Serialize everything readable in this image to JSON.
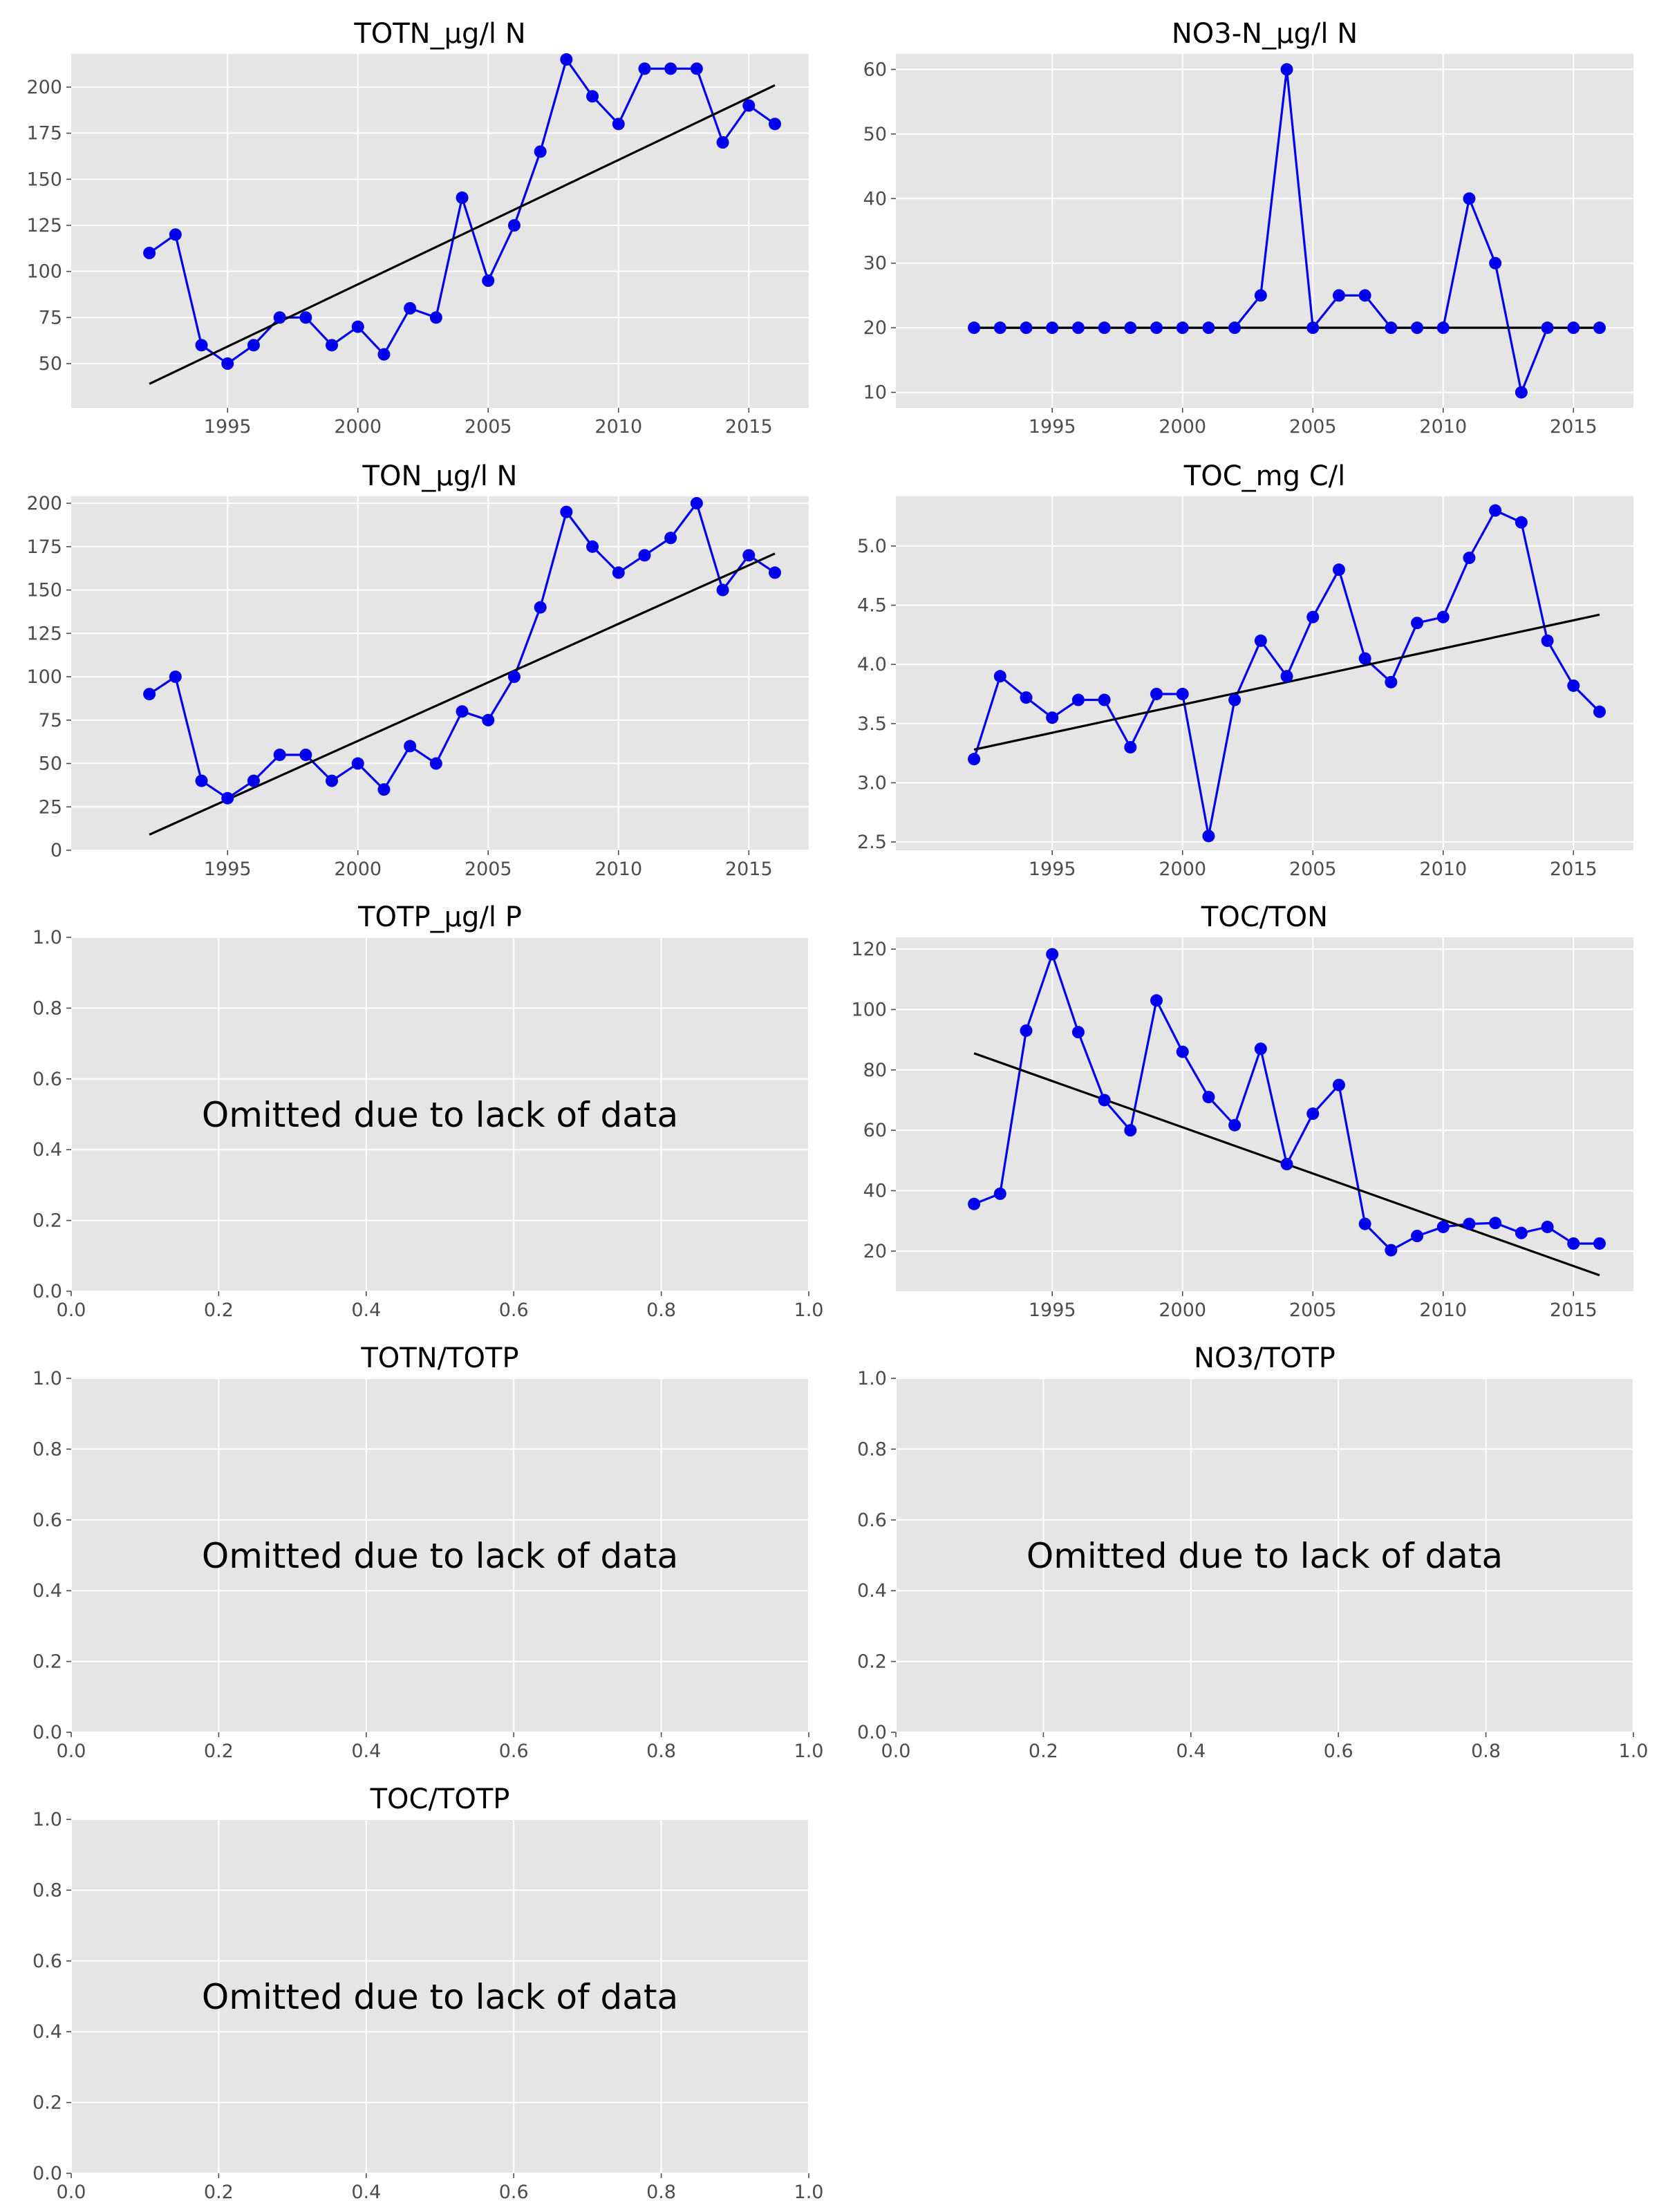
{
  "colors": {
    "plot_background": "#e5e5e5",
    "grid": "#ffffff",
    "data_line": "#0000ee",
    "trend_line": "#000000",
    "tick_text": "#4d4d4d"
  },
  "chart_data": [
    {
      "type": "line",
      "title": "TOTN_µg/l N",
      "x": [
        1992,
        1993,
        1994,
        1995,
        1996,
        1997,
        1998,
        1999,
        2000,
        2001,
        2002,
        2003,
        2004,
        2005,
        2006,
        2007,
        2008,
        2009,
        2010,
        2011,
        2012,
        2013,
        2014,
        2015,
        2016
      ],
      "series": [
        {
          "values": [
            110,
            120,
            60,
            50,
            60,
            75,
            75,
            60,
            70,
            55,
            80,
            75,
            140,
            95,
            125,
            165,
            215,
            195,
            180,
            210,
            210,
            210,
            170,
            190,
            180
          ]
        }
      ],
      "trend": [
        [
          1992,
          39
        ],
        [
          2016,
          201
        ]
      ],
      "xlim": [
        1989,
        2017.3
      ],
      "ylim": [
        26,
        218
      ],
      "xticks": [
        1995,
        2000,
        2005,
        2010,
        2015
      ],
      "yticks": [
        50,
        75,
        100,
        125,
        150,
        175,
        200
      ],
      "grid": true
    },
    {
      "type": "line",
      "title": "NO3-N_µg/l N",
      "x": [
        1992,
        1993,
        1994,
        1995,
        1996,
        1997,
        1998,
        1999,
        2000,
        2001,
        2002,
        2003,
        2004,
        2005,
        2006,
        2007,
        2008,
        2009,
        2010,
        2011,
        2012,
        2013,
        2014,
        2015,
        2016
      ],
      "series": [
        {
          "values": [
            20,
            20,
            20,
            20,
            20,
            20,
            20,
            20,
            20,
            20,
            20,
            25,
            60,
            20,
            25,
            25,
            20,
            20,
            20,
            40,
            30,
            10,
            20,
            20,
            20
          ]
        }
      ],
      "trend": [
        [
          1992,
          20
        ],
        [
          2016,
          20
        ]
      ],
      "xlim": [
        1989,
        2017.3
      ],
      "ylim": [
        7.6,
        62.4
      ],
      "xticks": [
        1995,
        2000,
        2005,
        2010,
        2015
      ],
      "yticks": [
        10,
        20,
        30,
        40,
        50,
        60
      ],
      "grid": true
    },
    {
      "type": "line",
      "title": "TON_µg/l N",
      "x": [
        1992,
        1993,
        1994,
        1995,
        1996,
        1997,
        1998,
        1999,
        2000,
        2001,
        2002,
        2003,
        2004,
        2005,
        2006,
        2007,
        2008,
        2009,
        2010,
        2011,
        2012,
        2013,
        2014,
        2015,
        2016
      ],
      "series": [
        {
          "values": [
            90,
            100,
            40,
            30,
            40,
            55,
            55,
            40,
            50,
            35,
            60,
            50,
            80,
            75,
            100,
            140,
            195,
            175,
            160,
            170,
            180,
            200,
            150,
            170,
            160
          ]
        }
      ],
      "trend": [
        [
          1992,
          9
        ],
        [
          2016,
          171
        ]
      ],
      "xlim": [
        1989,
        2017.3
      ],
      "ylim": [
        0,
        204
      ],
      "xticks": [
        1995,
        2000,
        2005,
        2010,
        2015
      ],
      "yticks": [
        0,
        25,
        50,
        75,
        100,
        125,
        150,
        175,
        200
      ],
      "grid": true
    },
    {
      "type": "line",
      "title": "TOC_mg C/l",
      "x": [
        1992,
        1993,
        1994,
        1995,
        1996,
        1997,
        1998,
        1999,
        2000,
        2001,
        2002,
        2003,
        2004,
        2005,
        2006,
        2007,
        2008,
        2009,
        2010,
        2011,
        2012,
        2013,
        2014,
        2015,
        2016
      ],
      "series": [
        {
          "values": [
            3.2,
            3.9,
            3.72,
            3.55,
            3.7,
            3.7,
            3.3,
            3.75,
            3.75,
            2.55,
            3.7,
            4.2,
            3.9,
            4.4,
            4.8,
            4.05,
            3.85,
            4.35,
            4.4,
            4.9,
            5.3,
            5.2,
            4.2,
            3.82,
            3.6
          ]
        }
      ],
      "trend": [
        [
          1992,
          3.28
        ],
        [
          2016,
          4.42
        ]
      ],
      "xlim": [
        1989,
        2017.3
      ],
      "ylim": [
        2.43,
        5.42
      ],
      "xticks": [
        1995,
        2000,
        2005,
        2010,
        2015
      ],
      "yticks": [
        2.5,
        3.0,
        3.5,
        4.0,
        4.5,
        5.0
      ],
      "grid": true
    },
    {
      "type": "empty",
      "title": "TOTP_µg/l P",
      "message": "Omitted due to lack of data",
      "xlim": [
        0,
        1
      ],
      "ylim": [
        0,
        1
      ],
      "xticks": [
        0.0,
        0.2,
        0.4,
        0.6,
        0.8,
        1.0
      ],
      "yticks": [
        0.0,
        0.2,
        0.4,
        0.6,
        0.8,
        1.0
      ],
      "grid": true
    },
    {
      "type": "line",
      "title": "TOC/TON",
      "x": [
        1992,
        1993,
        1994,
        1995,
        1996,
        1997,
        1998,
        1999,
        2000,
        2001,
        2002,
        2003,
        2004,
        2005,
        2006,
        2007,
        2008,
        2009,
        2010,
        2011,
        2012,
        2013,
        2014,
        2015,
        2016
      ],
      "series": [
        {
          "values": [
            35.6,
            39,
            93,
            118.3,
            92.5,
            70,
            60,
            103,
            86,
            71,
            61.7,
            87,
            48.8,
            65.5,
            75,
            29,
            20.3,
            25,
            28,
            29,
            29.3,
            26,
            28,
            22.5,
            22.5
          ]
        }
      ],
      "trend": [
        [
          1992,
          85.5
        ],
        [
          2016,
          12
        ]
      ],
      "xlim": [
        1989,
        2017.3
      ],
      "ylim": [
        6.7,
        123.9
      ],
      "xticks": [
        1995,
        2000,
        2005,
        2010,
        2015
      ],
      "yticks": [
        20,
        40,
        60,
        80,
        100,
        120
      ],
      "grid": true
    },
    {
      "type": "empty",
      "title": "TOTN/TOTP",
      "message": "Omitted due to lack of data",
      "xlim": [
        0,
        1
      ],
      "ylim": [
        0,
        1
      ],
      "xticks": [
        0.0,
        0.2,
        0.4,
        0.6,
        0.8,
        1.0
      ],
      "yticks": [
        0.0,
        0.2,
        0.4,
        0.6,
        0.8,
        1.0
      ],
      "grid": true
    },
    {
      "type": "empty",
      "title": "NO3/TOTP",
      "message": "Omitted due to lack of data",
      "xlim": [
        0,
        1
      ],
      "ylim": [
        0,
        1
      ],
      "xticks": [
        0.0,
        0.2,
        0.4,
        0.6,
        0.8,
        1.0
      ],
      "yticks": [
        0.0,
        0.2,
        0.4,
        0.6,
        0.8,
        1.0
      ],
      "grid": true
    },
    {
      "type": "empty",
      "title": "TOC/TOTP",
      "message": "Omitted due to lack of data",
      "xlim": [
        0,
        1
      ],
      "ylim": [
        0,
        1
      ],
      "xticks": [
        0.0,
        0.2,
        0.4,
        0.6,
        0.8,
        1.0
      ],
      "yticks": [
        0.0,
        0.2,
        0.4,
        0.6,
        0.8,
        1.0
      ],
      "grid": true
    }
  ]
}
